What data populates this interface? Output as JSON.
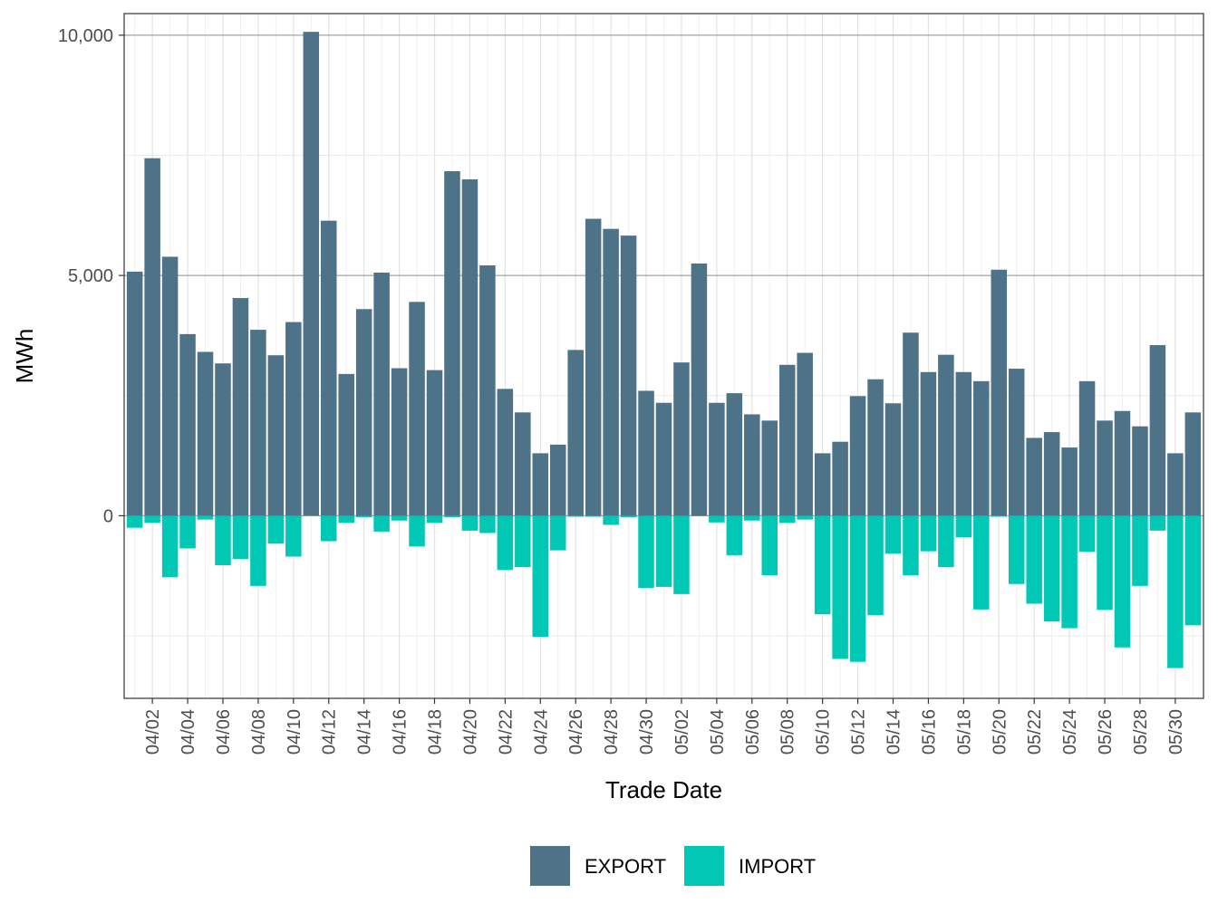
{
  "chart_data": {
    "type": "bar",
    "stacked": true,
    "xlabel": "Trade Date",
    "ylabel": "MWh",
    "ylim": [
      -3800,
      10450
    ],
    "yticks": [
      0,
      5000,
      10000
    ],
    "ytick_labels": [
      "0",
      "5,000",
      "10,000"
    ],
    "xtick_labels": [
      "04/02",
      "04/04",
      "04/06",
      "04/08",
      "04/10",
      "04/12",
      "04/14",
      "04/16",
      "04/18",
      "04/20",
      "04/22",
      "04/24",
      "04/26",
      "04/28",
      "04/30",
      "05/02",
      "05/04",
      "05/06",
      "05/08",
      "05/10",
      "05/12",
      "05/14",
      "05/16",
      "05/18",
      "05/20",
      "05/22",
      "05/24",
      "05/26",
      "05/28",
      "05/30"
    ],
    "grid": true,
    "legend_position": "bottom",
    "categories": [
      "04/01",
      "04/02",
      "04/03",
      "04/04",
      "04/05",
      "04/06",
      "04/07",
      "04/08",
      "04/09",
      "04/10",
      "04/11",
      "04/12",
      "04/13",
      "04/14",
      "04/15",
      "04/16",
      "04/17",
      "04/18",
      "04/19",
      "04/20",
      "04/21",
      "04/22",
      "04/23",
      "04/24",
      "04/25",
      "04/26",
      "04/27",
      "04/28",
      "04/29",
      "04/30",
      "05/01",
      "05/02",
      "05/03",
      "05/04",
      "05/05",
      "05/06",
      "05/07",
      "05/08",
      "05/09",
      "05/10",
      "05/11",
      "05/12",
      "05/13",
      "05/14",
      "05/15",
      "05/16",
      "05/17",
      "05/18",
      "05/19",
      "05/20",
      "05/21",
      "05/22",
      "05/23",
      "05/24",
      "05/25",
      "05/26",
      "05/27",
      "05/28",
      "05/29",
      "05/30",
      "05/31"
    ],
    "series": [
      {
        "name": "EXPORT",
        "color": "#4e7287",
        "values": [
          5080,
          7440,
          5390,
          3780,
          3410,
          3170,
          4530,
          3870,
          3340,
          4030,
          10070,
          6140,
          2950,
          4300,
          5060,
          3070,
          4450,
          3030,
          7170,
          7000,
          5210,
          2640,
          2150,
          1300,
          1480,
          3450,
          6180,
          5970,
          5830,
          2600,
          2350,
          3190,
          5250,
          2350,
          2550,
          2110,
          1980,
          3140,
          3390,
          1300,
          1540,
          2490,
          2840,
          2340,
          3810,
          2990,
          3350,
          2990,
          2800,
          5120,
          3060,
          1620,
          1740,
          1420,
          2800,
          1980,
          2180,
          1860,
          3550,
          1300,
          2150
        ]
      },
      {
        "name": "IMPORT",
        "color": "#00c8b4",
        "values": [
          -250,
          -150,
          -1280,
          -680,
          -80,
          -1030,
          -900,
          -1460,
          -580,
          -850,
          0,
          -530,
          -150,
          -30,
          -330,
          -100,
          -640,
          -150,
          -30,
          -310,
          -360,
          -1130,
          -1070,
          -2520,
          -720,
          -20,
          -20,
          -190,
          -30,
          -1500,
          -1480,
          -1630,
          -10,
          -140,
          -820,
          -100,
          -1240,
          -150,
          -80,
          -2050,
          -2980,
          -3040,
          -2070,
          -790,
          -1240,
          -740,
          -1070,
          -450,
          -1950,
          -20,
          -1420,
          -1830,
          -2200,
          -2340,
          -750,
          -1960,
          -2740,
          -1460,
          -310,
          -3170,
          -2280
        ]
      }
    ]
  }
}
